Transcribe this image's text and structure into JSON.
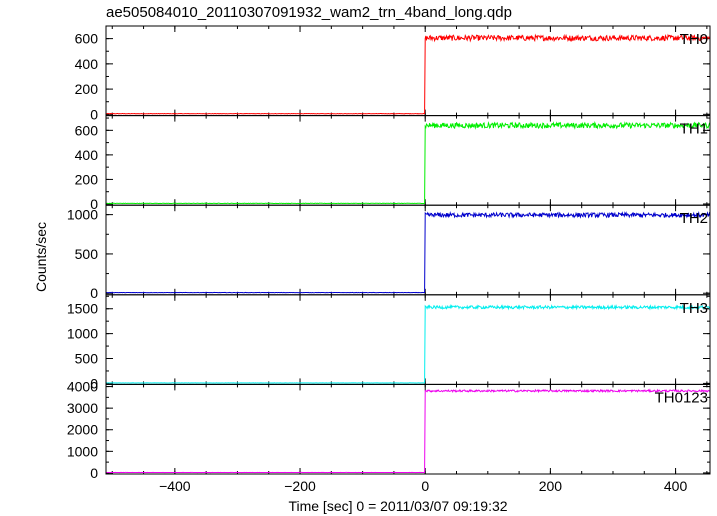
{
  "chart_data": {
    "type": "line",
    "title": "ae505084010_20110307091932_wam2_trn_4band_long.qdp",
    "xlabel": "Time [sec] 0 = 2011/03/07 09:19:32",
    "ylabel": "Counts/sec",
    "xlim": [
      -510,
      455
    ],
    "xticks": [
      -400,
      -200,
      0,
      200,
      400
    ],
    "xtick_labels": [
      "−400",
      "−200",
      "0",
      "200",
      "400"
    ],
    "onset_time": 0,
    "panels": [
      {
        "name": "TH0",
        "color": "#ff0000",
        "ylim": [
          -10,
          700
        ],
        "yticks": [
          0,
          200,
          400,
          600
        ],
        "ytick_labels": [
          "0",
          "200",
          "400",
          "600"
        ],
        "pre_level": 5,
        "post_level": 605,
        "noise": 22
      },
      {
        "name": "TH1",
        "color": "#00ee00",
        "ylim": [
          -10,
          720
        ],
        "yticks": [
          0,
          200,
          400,
          600
        ],
        "ytick_labels": [
          "0",
          "200",
          "400",
          "600"
        ],
        "pre_level": 5,
        "post_level": 640,
        "noise": 22
      },
      {
        "name": "TH2",
        "color": "#0000cc",
        "ylim": [
          -20,
          1120
        ],
        "yticks": [
          0,
          500,
          1000
        ],
        "ytick_labels": [
          "0",
          "500",
          "1000"
        ],
        "pre_level": 8,
        "post_level": 995,
        "noise": 28
      },
      {
        "name": "TH3",
        "color": "#00eeee",
        "ylim": [
          -20,
          1780
        ],
        "yticks": [
          0,
          500,
          1000,
          1500
        ],
        "ytick_labels": [
          "0",
          "500",
          "1000",
          "1500"
        ],
        "pre_level": 10,
        "post_level": 1530,
        "noise": 30
      },
      {
        "name": "TH0123",
        "color": "#ee00ee",
        "ylim": [
          -50,
          4100
        ],
        "yticks": [
          0,
          1000,
          2000,
          3000,
          4000
        ],
        "ytick_labels": [
          "0",
          "1000",
          "2000",
          "3000",
          "4000"
        ],
        "pre_level": 20,
        "post_level": 3800,
        "noise": 45
      }
    ]
  }
}
